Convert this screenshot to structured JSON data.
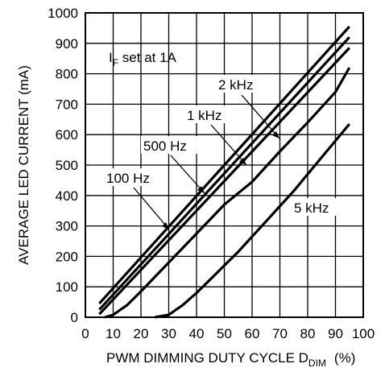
{
  "chart_data": {
    "type": "line",
    "title": "",
    "xlabel": {
      "main": "PWM DIMMING DUTY CYCLE D",
      "sub": "DIM",
      "unit": "(%)"
    },
    "ylabel": "AVERAGE LED CURRENT (mA)",
    "xlim": [
      0,
      100
    ],
    "ylim": [
      0,
      1000
    ],
    "x_ticks": [
      "0",
      "10",
      "20",
      "30",
      "40",
      "50",
      "60",
      "70",
      "80",
      "90",
      "100"
    ],
    "y_ticks": [
      "0",
      "100",
      "200",
      "300",
      "400",
      "500",
      "600",
      "700",
      "800",
      "900",
      "1000"
    ],
    "grid": true,
    "condition": {
      "main": "I",
      "sub": "F",
      "rest": " set at 1A"
    },
    "series": [
      {
        "name": "100 Hz",
        "x": [
          5,
          95
        ],
        "y": [
          45,
          955
        ]
      },
      {
        "name": "500 Hz",
        "x": [
          5,
          95
        ],
        "y": [
          25,
          920
        ]
      },
      {
        "name": "1 kHz",
        "x": [
          5,
          95
        ],
        "y": [
          10,
          885
        ]
      },
      {
        "name": "2 kHz",
        "x": [
          7,
          10,
          15,
          20,
          30,
          40,
          50,
          60,
          70,
          80,
          90,
          95
        ],
        "y": [
          0,
          8,
          40,
          85,
          180,
          275,
          370,
          445,
          545,
          640,
          740,
          820
        ]
      },
      {
        "name": "5 kHz",
        "x": [
          25,
          30,
          35,
          40,
          45,
          50,
          55,
          60,
          65,
          70,
          75,
          80,
          85,
          90,
          95
        ],
        "y": [
          0,
          8,
          40,
          80,
          125,
          170,
          215,
          265,
          315,
          365,
          415,
          470,
          525,
          580,
          635
        ]
      }
    ],
    "annotations": [
      {
        "text": "100 Hz",
        "series": "100 Hz"
      },
      {
        "text": "500 Hz",
        "series": "500 Hz"
      },
      {
        "text": "1 kHz",
        "series": "1 kHz"
      },
      {
        "text": "2 kHz",
        "series": "2 kHz"
      },
      {
        "text": "5 kHz",
        "series": "5 kHz"
      }
    ]
  }
}
